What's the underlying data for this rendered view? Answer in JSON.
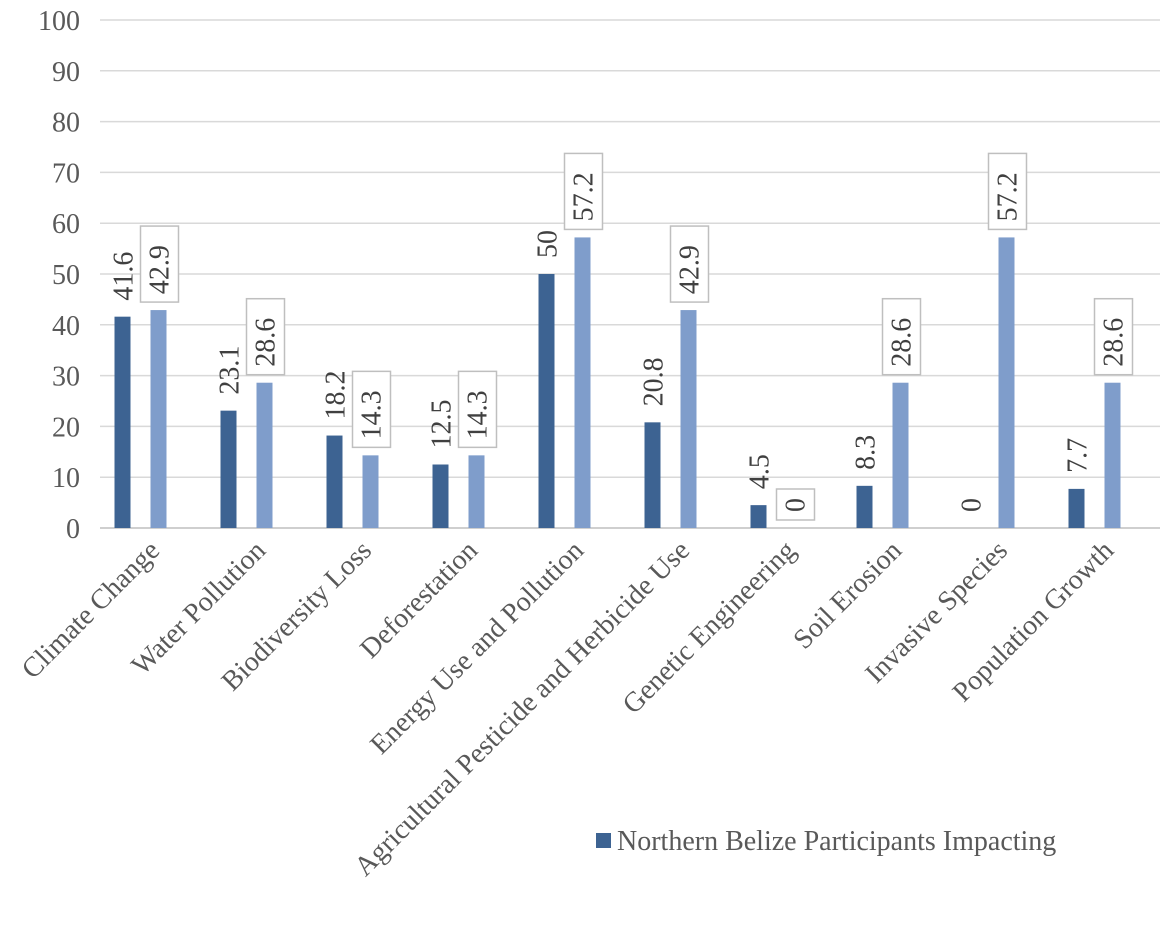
{
  "chart_data": {
    "type": "bar",
    "title": "",
    "xlabel": "",
    "ylabel": "",
    "ylim": [
      0,
      100
    ],
    "yticks": [
      0,
      10,
      20,
      30,
      40,
      50,
      60,
      70,
      80,
      90,
      100
    ],
    "grid": true,
    "legend_position": "bottom-right",
    "categories": [
      "Climate Change",
      "Water Pollution",
      "Biodiversity Loss",
      "Deforestation",
      "Energy Use and Pollution",
      "Agricultural Pesticide and Herbicide Use",
      "Genetic Engineering",
      "Soil Erosion",
      "Invasive Species",
      "Population Growth"
    ],
    "series": [
      {
        "name": "Northern Belize Participants Impacting",
        "color": "#3d6392",
        "values": [
          41.6,
          23.1,
          18.2,
          12.5,
          50,
          20.8,
          4.5,
          8.3,
          0,
          7.7
        ]
      },
      {
        "color": "#7f9dcb",
        "values": [
          42.9,
          28.6,
          14.3,
          14.3,
          57.2,
          42.9,
          0,
          28.6,
          57.2,
          28.6
        ]
      }
    ]
  }
}
